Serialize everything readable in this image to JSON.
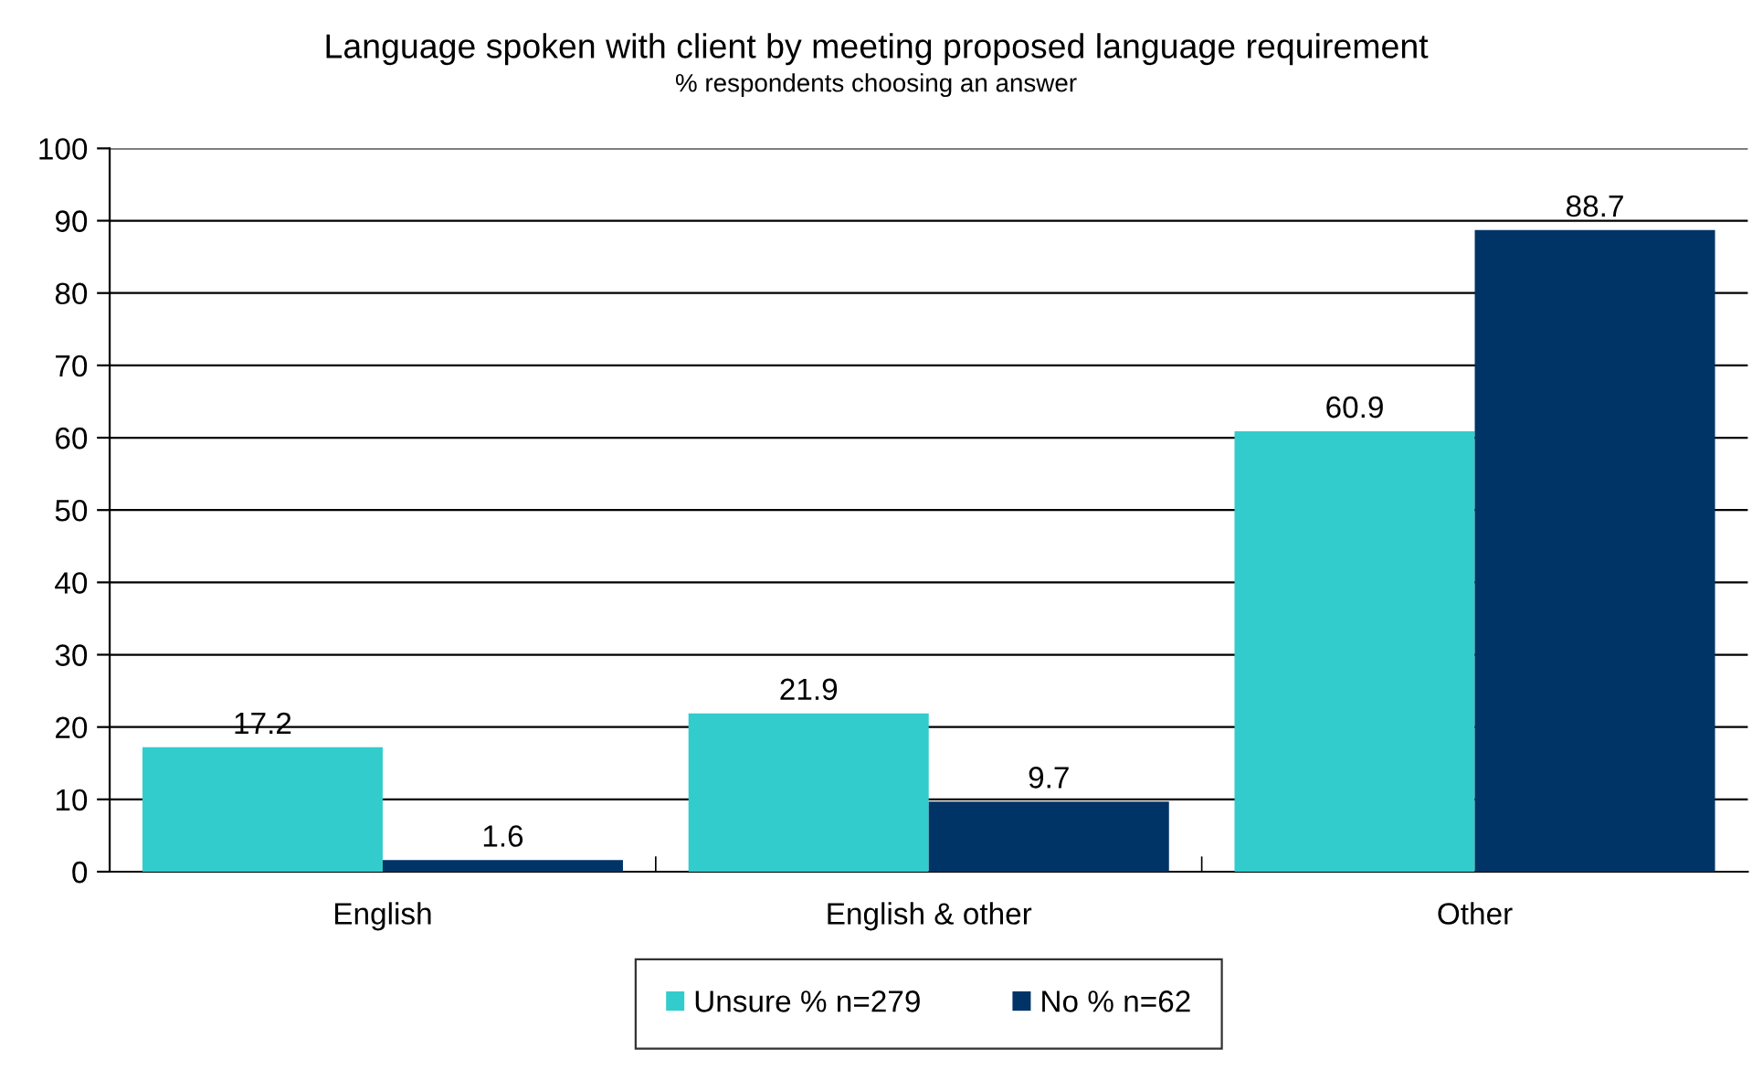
{
  "chart_data": {
    "type": "bar",
    "title": "Language spoken with client by meeting proposed language requirement",
    "subtitle": "% respondents choosing an answer",
    "categories": [
      "English",
      "English & other",
      "Other"
    ],
    "series": [
      {
        "name": "Unsure % n=279",
        "color": "#33cccc",
        "values": [
          17.2,
          21.9,
          60.9
        ]
      },
      {
        "name": "No % n=62",
        "color": "#003366",
        "values": [
          1.6,
          9.7,
          88.7
        ]
      }
    ],
    "ylim": [
      0,
      100
    ],
    "yticks": [
      0,
      10,
      20,
      30,
      40,
      50,
      60,
      70,
      80,
      90,
      100
    ],
    "grid": "y",
    "legend": "bottom",
    "data_labels": true
  }
}
